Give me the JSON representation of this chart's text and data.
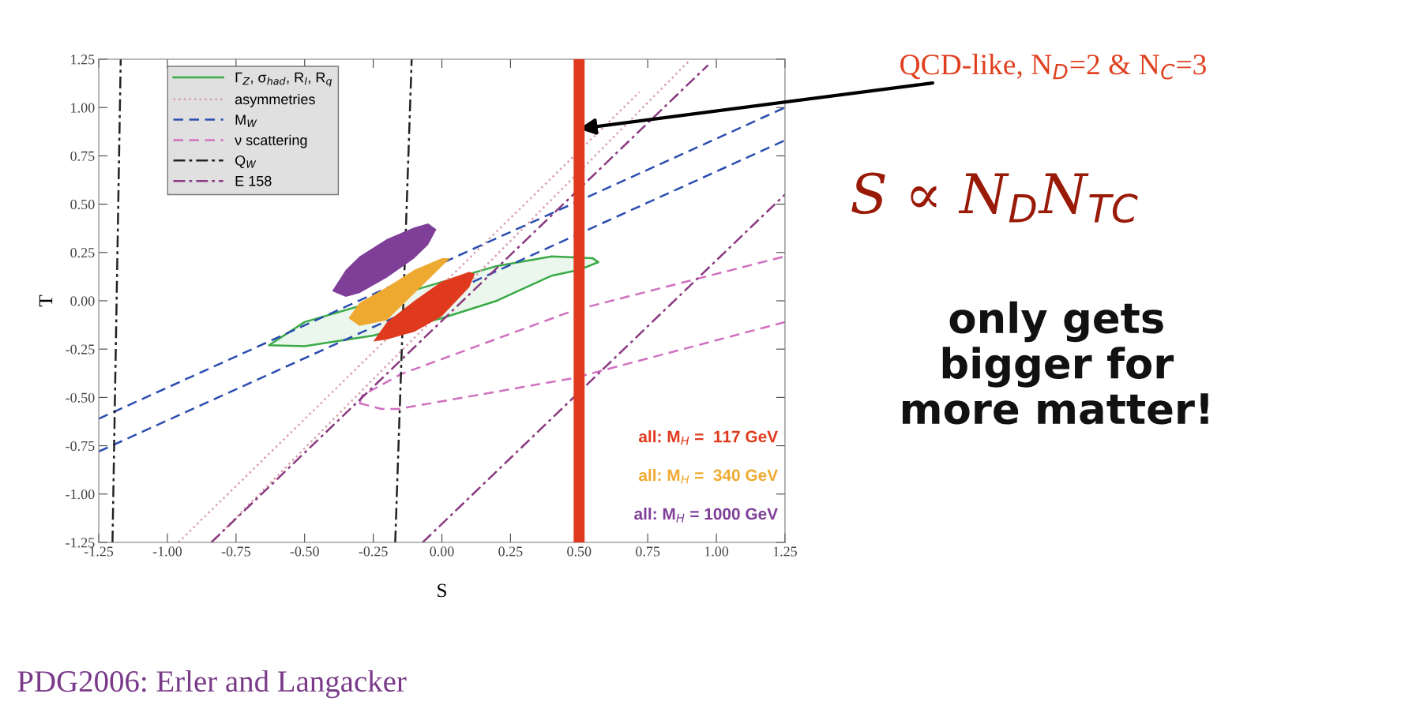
{
  "chart_data": {
    "type": "line",
    "xlabel": "S",
    "ylabel": "T",
    "xlim": [
      -1.25,
      1.25
    ],
    "ylim": [
      -1.25,
      1.25
    ],
    "xticks": [
      {
        "value": -1.25,
        "label": "-1.25"
      },
      {
        "value": -1.0,
        "label": "-1.00"
      },
      {
        "value": -0.75,
        "label": "-0.75"
      },
      {
        "value": -0.5,
        "label": "-0.50"
      },
      {
        "value": -0.25,
        "label": "-0.25"
      },
      {
        "value": 0,
        "label": "0.00"
      },
      {
        "value": 0.25,
        "label": "0.25"
      },
      {
        "value": 0.5,
        "label": "0.50"
      },
      {
        "value": 0.75,
        "label": "0.75"
      },
      {
        "value": 1.0,
        "label": "1.00"
      },
      {
        "value": 1.25,
        "label": "1.25"
      }
    ],
    "yticks": [
      {
        "value": -1.25,
        "label": "-1.25"
      },
      {
        "value": -1.0,
        "label": "-1.00"
      },
      {
        "value": -0.75,
        "label": "-0.75"
      },
      {
        "value": -0.5,
        "label": "-0.50"
      },
      {
        "value": -0.25,
        "label": "-0.25"
      },
      {
        "value": 0,
        "label": "0.00"
      },
      {
        "value": 0.25,
        "label": "0.25"
      },
      {
        "value": 0.5,
        "label": "0.50"
      },
      {
        "value": 0.75,
        "label": "0.75"
      },
      {
        "value": 1.0,
        "label": "1.00"
      },
      {
        "value": 1.25,
        "label": "1.25"
      }
    ],
    "grid": false,
    "legend": "top left",
    "marker": "none",
    "series": [
      {
        "type": "area",
        "name": "Γ$_{Z}$, σ$_{had}$, R$_{l}$, R$_{q}$",
        "color": "#3aaa48",
        "line_style": "solid",
        "x": [
          -0.63,
          -0.5,
          0.2,
          0.4,
          0.55,
          0.57,
          0.5,
          0.4,
          0.2,
          0.0,
          -0.25,
          -0.5
        ],
        "values": [
          -0.23,
          -0.11,
          0.18,
          0.23,
          0.22,
          0.2,
          0.16,
          0.13,
          0.0,
          -0.09,
          -0.18,
          -0.235
        ]
      },
      {
        "name": "asymmetries",
        "color": "#d8a0a8",
        "line_style": "dotted",
        "x": [
          -0.96,
          0.72
        ],
        "values": [
          -1.25,
          1.08
        ]
      },
      {
        "color": "#d8a0a8",
        "line_style": "dotted",
        "x": [
          -0.84,
          0.9
        ],
        "values": [
          -1.25,
          1.24
        ]
      },
      {
        "name": "M$_{W}$",
        "color": "#2a4db0",
        "line_style": "dashed",
        "x": [
          -1.25,
          1.25
        ],
        "values": [
          -0.61,
          1.0
        ]
      },
      {
        "color": "#2a4db0",
        "line_style": "dashed",
        "x": [
          -1.25,
          1.25
        ],
        "values": [
          -0.78,
          0.83
        ]
      },
      {
        "name": "ν scattering",
        "color": "#d070c0",
        "line_style": "dashed",
        "x": [
          -0.3,
          -0.29,
          -0.15,
          0.48,
          1.25
        ],
        "values": [
          -0.53,
          -0.49,
          -0.38,
          -0.05,
          0.23
        ]
      },
      {
        "color": "#d070c0",
        "line_style": "dashed",
        "x": [
          -0.3,
          -0.22,
          -0.16,
          0.48,
          1.25
        ],
        "values": [
          -0.53,
          -0.56,
          -0.56,
          -0.4,
          -0.11
        ]
      },
      {
        "name": "Q$_{W}$",
        "color": "#222222",
        "line_style": "dashdot",
        "x": [
          -1.2,
          -1.17
        ],
        "values": [
          -1.25,
          1.25
        ]
      },
      {
        "color": "#222222",
        "line_style": "dashdot",
        "x": [
          -0.17,
          -0.11
        ],
        "values": [
          -1.25,
          1.25
        ]
      },
      {
        "name": "E 158",
        "color": "#8a3a80",
        "line_style": "dashdot",
        "x": [
          -0.84,
          0.97
        ],
        "values": [
          -1.25,
          1.22
        ]
      },
      {
        "color": "#8a3a80",
        "line_style": "dashdot",
        "x": [
          -0.07,
          1.25
        ],
        "values": [
          -1.25,
          0.55
        ]
      },
      {
        "type": "area",
        "name": "all: M$_{H}$ = 1000 GeV",
        "color": "#7f3f98",
        "x": [
          -0.4,
          -0.35,
          -0.3,
          -0.2,
          -0.1,
          -0.05,
          -0.02,
          -0.05,
          -0.1,
          -0.2,
          -0.3,
          -0.35
        ],
        "values": [
          0.05,
          0.16,
          0.23,
          0.32,
          0.38,
          0.4,
          0.37,
          0.29,
          0.22,
          0.12,
          0.04,
          0.02
        ]
      },
      {
        "type": "area",
        "name": "all: M$_{H}$ =  340 GeV",
        "color": "#eeaa30",
        "x": [
          -0.34,
          -0.3,
          -0.2,
          -0.1,
          0.0,
          0.03,
          -0.2,
          -0.3
        ],
        "values": [
          -0.09,
          -0.01,
          0.07,
          0.16,
          0.22,
          0.22,
          -0.1,
          -0.13
        ]
      },
      {
        "type": "area",
        "name": "all: M$_{H}$ =  117 GeV",
        "color": "#e03a1e",
        "x": [
          -0.25,
          -0.2,
          -0.1,
          0.0,
          0.1,
          0.12,
          0.1,
          0.0,
          -0.1,
          -0.2
        ],
        "values": [
          -0.21,
          -0.11,
          0.0,
          0.1,
          0.15,
          0.14,
          0.07,
          -0.08,
          -0.16,
          -0.2
        ]
      }
    ],
    "ref_lines": [
      {
        "axis": "x",
        "value": 0.5,
        "color": "#e03a1e"
      }
    ],
    "annotations": [
      {
        "text": "QCD-like, N$_{D}$=2 & N$_{C}$=3",
        "x": 0.5,
        "y": 0.89
      },
      "S ∝ N$_{D}$N$_{TC}$",
      "only gets\nbigger for\nmore matter!",
      "PDG2006: Erler and Langacker"
    ]
  }
}
